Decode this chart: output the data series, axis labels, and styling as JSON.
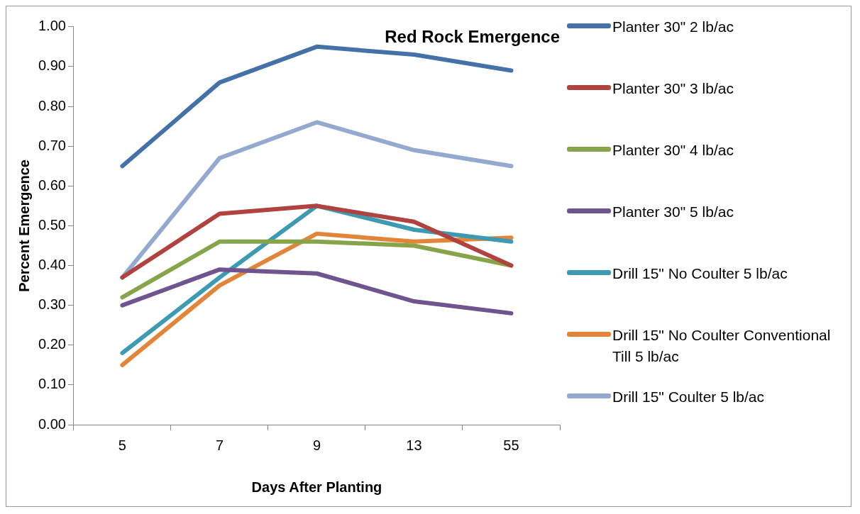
{
  "chart_data": {
    "type": "line",
    "title": "Red Rock Emergence",
    "xlabel": "Days After Planting",
    "ylabel": "Percent Emergence",
    "categories": [
      "5",
      "7",
      "9",
      "13",
      "55"
    ],
    "ylim": [
      0,
      1
    ],
    "yticks": [
      {
        "value": 0,
        "label": "0.00"
      },
      {
        "value": 0.1,
        "label": "0.10"
      },
      {
        "value": 0.2,
        "label": "0.20"
      },
      {
        "value": 0.3,
        "label": "0.30"
      },
      {
        "value": 0.4,
        "label": "0.40"
      },
      {
        "value": 0.5,
        "label": "0.50"
      },
      {
        "value": 0.6,
        "label": "0.60"
      },
      {
        "value": 0.7,
        "label": "0.70"
      },
      {
        "value": 0.8,
        "label": "0.80"
      },
      {
        "value": 0.9,
        "label": "0.90"
      },
      {
        "value": 1,
        "label": "1.00"
      }
    ],
    "grid": false,
    "legend": "right",
    "marker": "none",
    "line_style": "solid",
    "series": [
      {
        "name": "Planter 30\" 2 lb/ac",
        "color": "#4472a8",
        "values": [
          0.65,
          0.86,
          0.95,
          0.93,
          0.89
        ]
      },
      {
        "name": "Planter 30\" 3 lb/ac",
        "color": "#b0433f",
        "values": [
          0.37,
          0.53,
          0.55,
          0.51,
          0.4
        ]
      },
      {
        "name": "Planter 30\" 4 lb/ac",
        "color": "#88a44a",
        "values": [
          0.32,
          0.46,
          0.46,
          0.45,
          0.4
        ]
      },
      {
        "name": "Planter 30\" 5 lb/ac",
        "color": "#6e5590",
        "values": [
          0.3,
          0.39,
          0.38,
          0.31,
          0.28
        ]
      },
      {
        "name": "Drill 15\" No Coulter 5 lb/ac",
        "color": "#3c9bb2",
        "values": [
          0.18,
          0.37,
          0.55,
          0.49,
          0.46
        ]
      },
      {
        "name": "Drill 15\" No Coulter Conventional Till 5 lb/ac",
        "color": "#e28539",
        "values": [
          0.15,
          0.35,
          0.48,
          0.46,
          0.47
        ]
      },
      {
        "name": "Drill 15\" Coulter 5 lb/ac",
        "color": "#93a9cf",
        "values": [
          0.37,
          0.67,
          0.76,
          0.69,
          0.65
        ]
      }
    ]
  }
}
